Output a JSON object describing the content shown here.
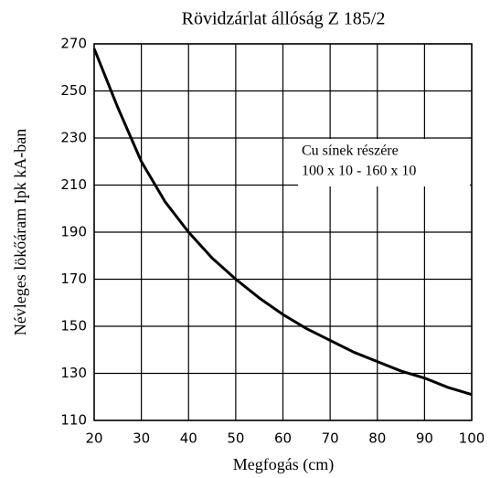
{
  "chart_data": {
    "type": "line",
    "title": "Rövidzárlat állóság Z 185/2",
    "xlabel": "Megfogás (cm)",
    "ylabel": "Névleges lökőáram Ipk kA-ban",
    "annotation": [
      "Cu sínek részére",
      "100 x 10 - 160 x 10"
    ],
    "x": [
      20,
      25,
      30,
      35,
      40,
      45,
      50,
      55,
      60,
      65,
      70,
      75,
      80,
      85,
      90,
      95,
      100
    ],
    "series": [
      {
        "color": "#000000",
        "values": [
          268,
          243,
          220,
          203,
          190,
          179,
          170,
          162,
          155,
          149,
          144,
          139,
          135,
          131,
          128,
          124,
          121
        ]
      }
    ],
    "xlim": [
      20,
      100
    ],
    "xticks": [
      20,
      30,
      40,
      50,
      60,
      70,
      80,
      90,
      100
    ],
    "ylim": [
      110,
      270
    ],
    "yticks": [
      110,
      130,
      150,
      170,
      190,
      210,
      230,
      250,
      270
    ],
    "grid": true
  }
}
